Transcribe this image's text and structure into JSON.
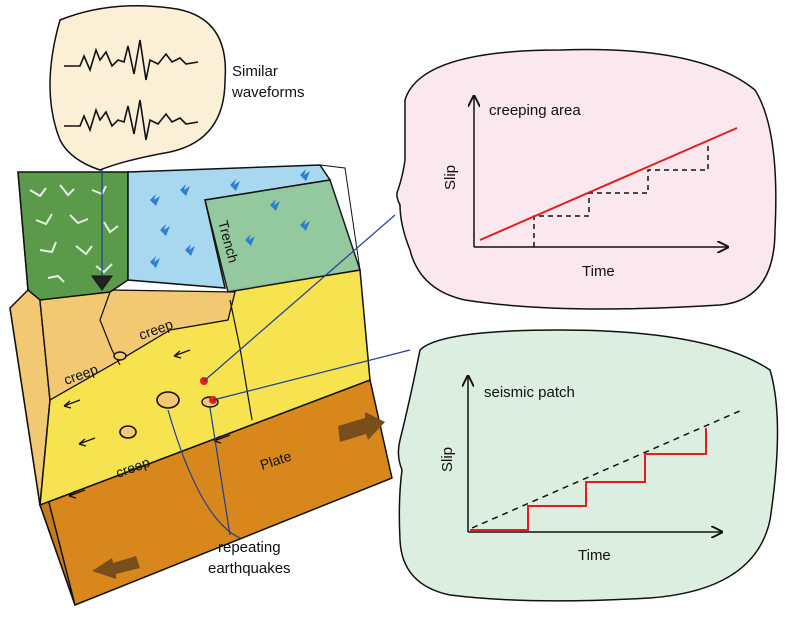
{
  "waveform_bubble": {
    "caption_line1": "Similar",
    "caption_line2": "waveforms"
  },
  "block": {
    "trench_label": "Trench",
    "plate_label": "Plate",
    "creep_labels": [
      "creep",
      "creep",
      "creep"
    ]
  },
  "annotation": {
    "line1": "repeating",
    "line2": "earthquakes"
  },
  "creeping_panel": {
    "title": "creeping area",
    "ylabel": "Slip",
    "xlabel": "Time"
  },
  "seismic_panel": {
    "title": "seismic patch",
    "ylabel": "Slip",
    "xlabel": "Time"
  },
  "colors": {
    "land_green": "#5a9a4a",
    "sea_blue": "#a8d8f0",
    "trench_green": "#8fc79a",
    "crust_tan": "#f2c873",
    "plate_yellow": "#f7e24f",
    "plate_side": "#d7871c",
    "bubble_cream": "#fbf0d6",
    "bubble_pink": "#fbe8ef",
    "bubble_green": "#dceee0",
    "slip_red": "#e02020"
  }
}
